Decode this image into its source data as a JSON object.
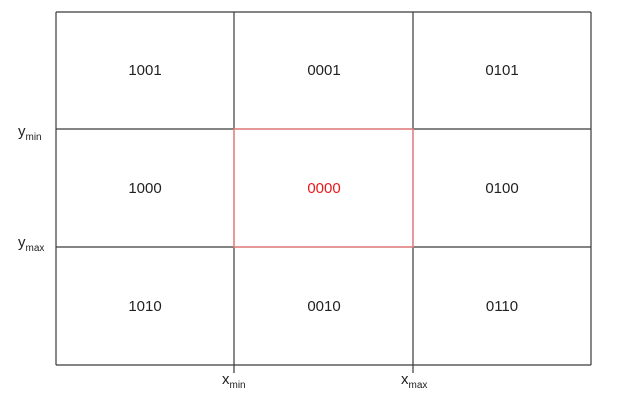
{
  "regions": [
    [
      "1001",
      "0001",
      "0101"
    ],
    [
      "1000",
      "0000",
      "0100"
    ],
    [
      "1010",
      "0010",
      "0110"
    ]
  ],
  "colors": {
    "grid_line": "#3a3a3a",
    "text": "#222222",
    "clip_window": "#f08080",
    "clip_window_code": "#e8191c"
  },
  "labels": {
    "y_min": {
      "base": "y",
      "sub": "min"
    },
    "y_max": {
      "base": "y",
      "sub": "max"
    },
    "x_min": {
      "base": "x",
      "sub": "min"
    },
    "x_max": {
      "base": "x",
      "sub": "max"
    }
  }
}
